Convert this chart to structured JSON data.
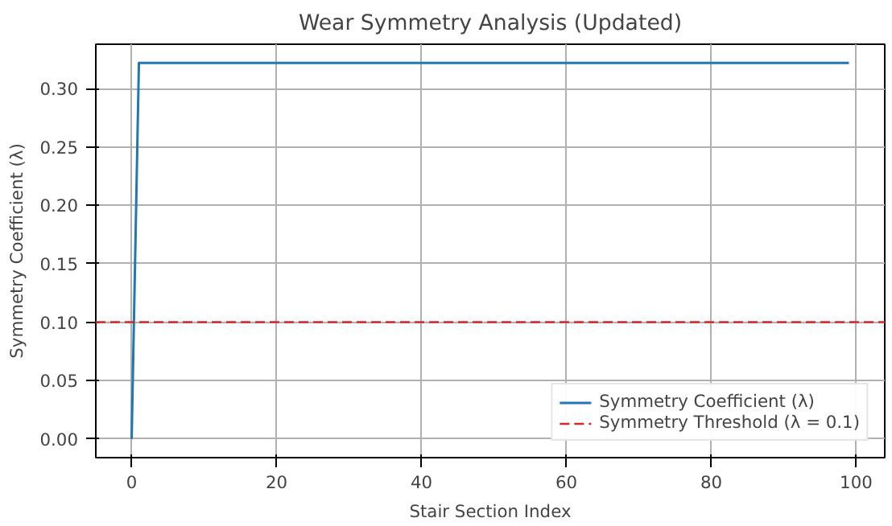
{
  "chart_data": {
    "type": "line",
    "title": "Wear Symmetry Analysis (Updated)",
    "xlabel": "Stair Section Index",
    "ylabel": "Symmetry Coefficient (λ)",
    "series": [
      {
        "name": "Symmetry Coefficient (λ)",
        "color": "#1f77b4",
        "x": [
          0,
          1,
          99
        ],
        "values": [
          0,
          0.322,
          0.322
        ]
      }
    ],
    "ref_lines": [
      {
        "axis": "y",
        "value": 0.1,
        "label": "Symmetry Threshold (λ = 0.1)",
        "color": "#d62728",
        "line_style": "dashed"
      }
    ],
    "xlim": [
      -4.95,
      103.95
    ],
    "ylim": [
      -0.016,
      0.338
    ],
    "xticks": [
      0,
      20,
      40,
      60,
      80,
      100
    ],
    "yticks": [
      {
        "value": 0,
        "label": "0.00"
      },
      {
        "value": 0.05,
        "label": "0.05"
      },
      {
        "value": 0.1,
        "label": "0.10"
      },
      {
        "value": 0.15,
        "label": "0.15"
      },
      {
        "value": 0.2,
        "label": "0.20"
      },
      {
        "value": 0.25,
        "label": "0.25"
      },
      {
        "value": 0.3,
        "label": "0.30"
      }
    ],
    "grid": true,
    "legend": "bottom right",
    "marker": "none",
    "line_style": "solid"
  }
}
